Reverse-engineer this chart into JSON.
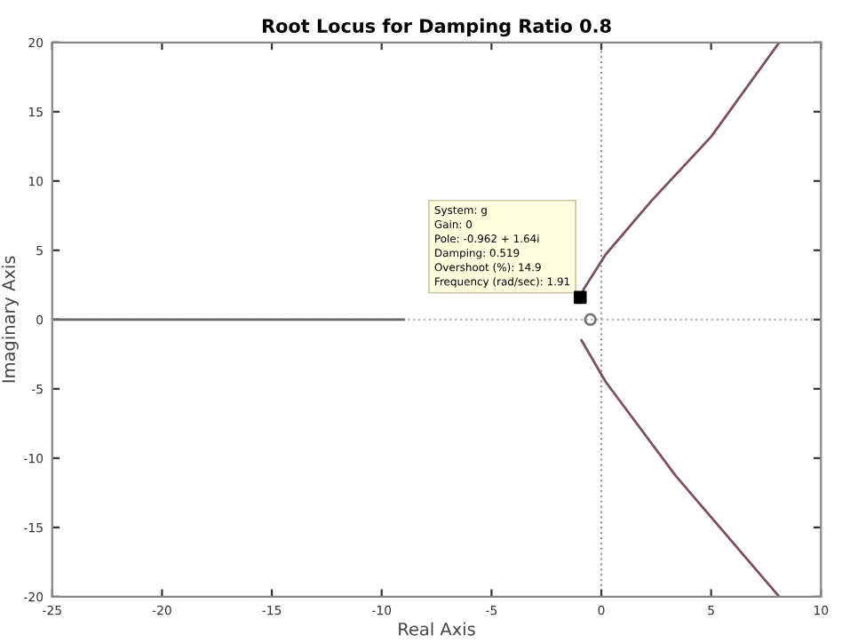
{
  "chart_data": {
    "type": "line",
    "title": "Root Locus for Damping Ratio 0.8",
    "xlabel": "Real Axis",
    "ylabel": "Imaginary Axis",
    "xlim": [
      -25,
      10
    ],
    "ylim": [
      -20,
      20
    ],
    "xticks": [
      -25,
      -20,
      -15,
      -10,
      -5,
      0,
      5,
      10
    ],
    "yticks": [
      -20,
      -15,
      -10,
      -5,
      0,
      5,
      10,
      15,
      20
    ],
    "grid": false,
    "legend": false,
    "ref_lines": [
      {
        "axis": "x",
        "value": 0,
        "color": "#999999",
        "line_style": "dotted"
      },
      {
        "axis": "y",
        "value": 0,
        "color": "#b4b4b4",
        "line_style": "dotted"
      }
    ],
    "series": [
      {
        "color": "#7a5060",
        "x": [
          -0.96,
          -0.8,
          0.2,
          2.3,
          5.0,
          8.1
        ],
        "values": [
          1.6,
          2.2,
          4.7,
          8.6,
          13.2,
          20
        ]
      },
      {
        "color": "#7a5060",
        "x": [
          -0.9,
          0.2,
          3.4,
          8.1
        ],
        "values": [
          -1.5,
          -4.5,
          -11.3,
          -20
        ]
      },
      {
        "color": "#666666",
        "x": [
          -25,
          -9
        ],
        "values": [
          0,
          0
        ]
      },
      {
        "type": "scatter",
        "color": "#777777",
        "marker": "circle",
        "x": [
          -0.5
        ],
        "values": [
          0
        ]
      },
      {
        "type": "scatter",
        "color": "#000000",
        "marker": "square",
        "x": [
          -0.96
        ],
        "values": [
          1.6
        ]
      }
    ],
    "annotations": [
      {
        "text": "System: g\nGain: 0\nPole: -0.962 + 1.64i\nDamping: 0.519\nOvershoot (%): 14.9\nFrequency (rad/sec): 1.91",
        "x": -0.96,
        "y": 1.6
      }
    ]
  }
}
